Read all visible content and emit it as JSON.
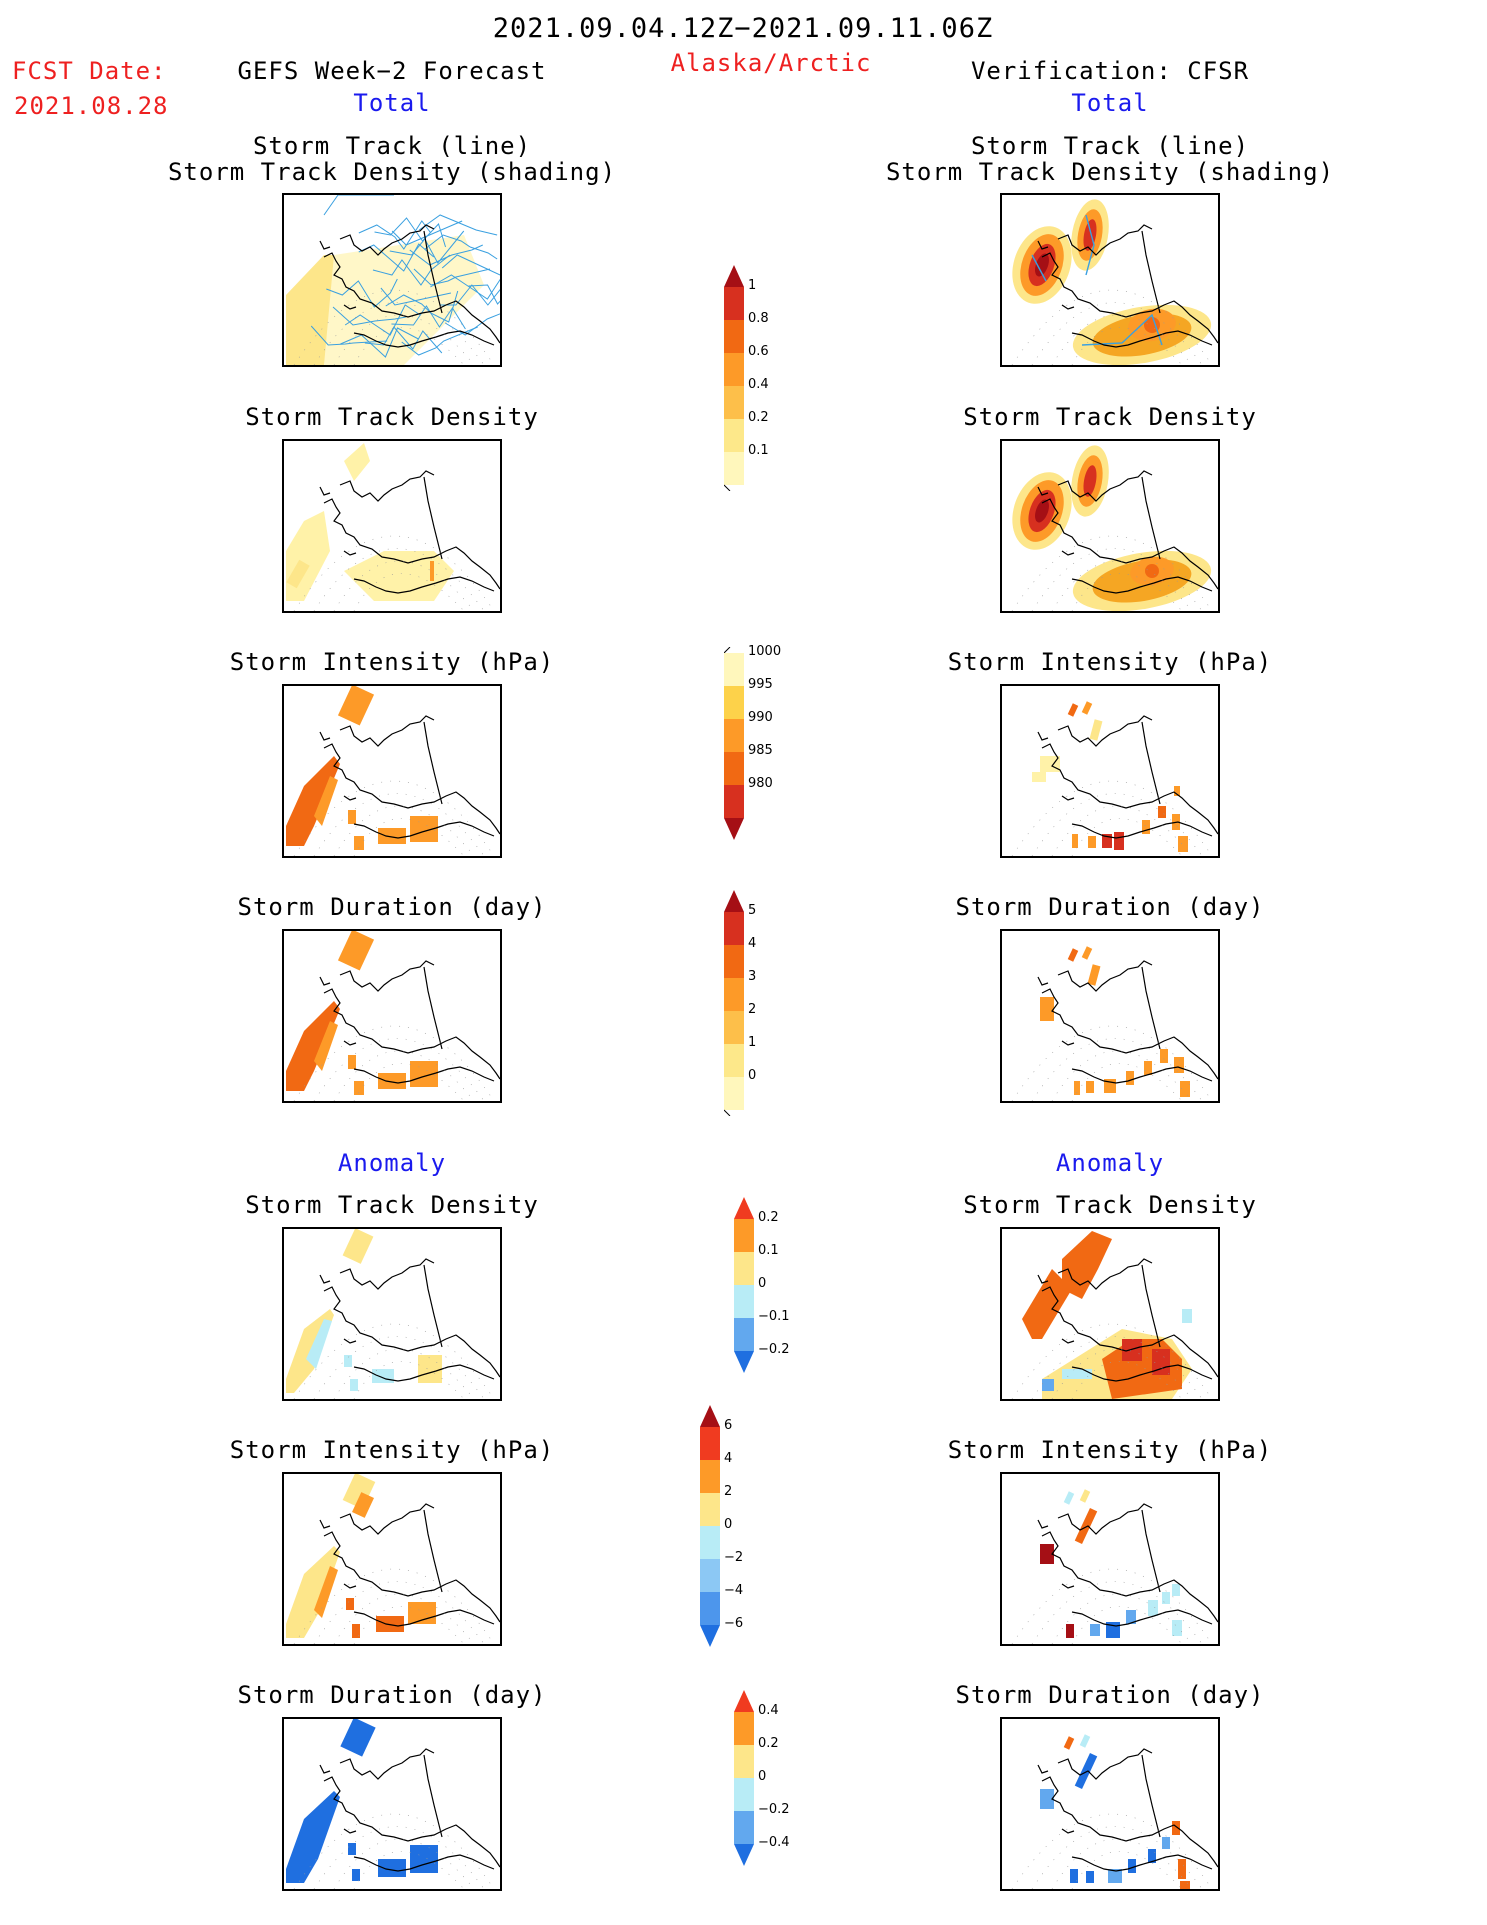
{
  "header": {
    "period": "2021.09.04.12Z−2021.09.11.06Z",
    "fcst_label": "FCST Date:",
    "fcst_date": "2021.08.28",
    "left_title": "GEFS Week−2 Forecast",
    "region": "Alaska/Arctic",
    "right_title": "Verification: CFSR",
    "total_label": "Total",
    "anomaly_label": "Anomaly"
  },
  "colors": {
    "red_text": "#ee2020",
    "blue_text": "#1a1aee",
    "track_line": "#3aa0e0"
  },
  "panels": {
    "track_line": "Storm Track (line)",
    "track_shading": "Storm Track Density (shading)",
    "density": "Storm Track Density",
    "intensity": "Storm Intensity (hPa)",
    "duration": "Storm Duration (day)"
  },
  "chart_data": [
    {
      "type": "heatmap",
      "title": "Total Storm Track Density",
      "colorbar": {
        "ticks": [
          "1",
          "0.8",
          "0.6",
          "0.4",
          "0.2",
          "0.1"
        ],
        "colors": [
          "#a50f15",
          "#d7301f",
          "#f16913",
          "#fd9a28",
          "#fdbf4a",
          "#fde88a",
          "#fff7bc"
        ],
        "extend": "max"
      }
    },
    {
      "type": "heatmap",
      "title": "Total Storm Intensity (hPa)",
      "colorbar": {
        "ticks": [
          "1000",
          "995",
          "990",
          "985",
          "980"
        ],
        "colors": [
          "#fff7bc",
          "#fdd24a",
          "#fd9a28",
          "#f16913",
          "#d7301f",
          "#a50f15"
        ],
        "extend": "min"
      }
    },
    {
      "type": "heatmap",
      "title": "Total Storm Duration (day)",
      "colorbar": {
        "ticks": [
          "5",
          "4",
          "3",
          "2",
          "1",
          "0"
        ],
        "colors": [
          "#a50f15",
          "#d7301f",
          "#f16913",
          "#fd9a28",
          "#fdbf4a",
          "#fde88a",
          "#fff7bc"
        ],
        "extend": "max"
      }
    },
    {
      "type": "heatmap",
      "title": "Anomaly Storm Track Density",
      "colorbar": {
        "ticks": [
          "0.2",
          "0.1",
          "0",
          "−0.1",
          "−0.2"
        ],
        "colors": [
          "#f03b20",
          "#fd9a28",
          "#fde68a",
          "#b8ecf6",
          "#62a8ee",
          "#1f6fe0"
        ],
        "extend": "both"
      }
    },
    {
      "type": "heatmap",
      "title": "Anomaly Storm Intensity (hPa)",
      "colorbar": {
        "ticks": [
          "6",
          "4",
          "2",
          "0",
          "−2",
          "−4",
          "−6"
        ],
        "colors": [
          "#a50f15",
          "#f03b20",
          "#fd9a28",
          "#fde68a",
          "#b8ecf6",
          "#8cc8f4",
          "#4d96ec",
          "#1f6fe0"
        ],
        "extend": "both"
      }
    },
    {
      "type": "heatmap",
      "title": "Anomaly Storm Duration (day)",
      "colorbar": {
        "ticks": [
          "0.4",
          "0.2",
          "0",
          "−0.2",
          "−0.4"
        ],
        "colors": [
          "#f03b20",
          "#fd9a28",
          "#fde68a",
          "#b8ecf6",
          "#62a8ee",
          "#1f6fe0"
        ],
        "extend": "both"
      }
    }
  ]
}
